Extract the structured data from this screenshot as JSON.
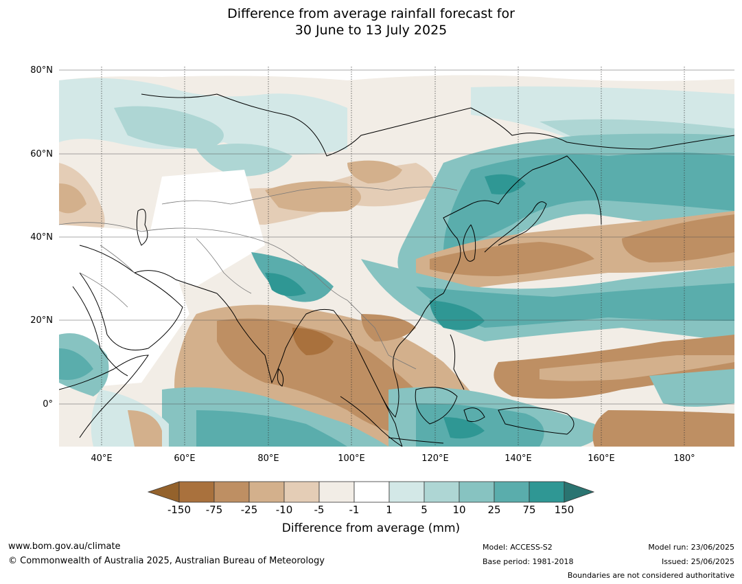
{
  "title": {
    "line1": "Difference from average rainfall forecast for",
    "line2": "30 June to 13 July 2025"
  },
  "map": {
    "lat_labels": [
      "80°N",
      "60°N",
      "40°N",
      "20°N",
      "0°"
    ],
    "lon_labels": [
      "40°E",
      "60°E",
      "80°E",
      "100°E",
      "120°E",
      "140°E",
      "160°E",
      "180°"
    ],
    "region": "Asia and western Pacific"
  },
  "legend": {
    "title": "Difference from average (mm)",
    "ticks": [
      "-150",
      "-75",
      "-25",
      "-10",
      "-5",
      "-1",
      "1",
      "5",
      "10",
      "25",
      "75",
      "150"
    ],
    "colors": {
      "below_min": "#94622c",
      "bins": [
        "#a9713d",
        "#be8f63",
        "#d3b08c",
        "#e4cdb6",
        "#f2ede6",
        "#ffffff",
        "#d3e8e7",
        "#aed6d4",
        "#87c3c1",
        "#5aadac",
        "#2f9794"
      ],
      "above_max": "#2a7471"
    }
  },
  "footer": {
    "website": "www.bom.gov.au/climate",
    "copyright": "© Commonwealth of Australia 2025, Australian Bureau of Meteorology",
    "model": "Model: ACCESS-S2",
    "base_period": "Base period: 1981-2018",
    "model_run": "Model run: 23/06/2025",
    "issued": "Issued: 25/06/2025",
    "disclaimer": "Boundaries are not considered authoritative"
  }
}
